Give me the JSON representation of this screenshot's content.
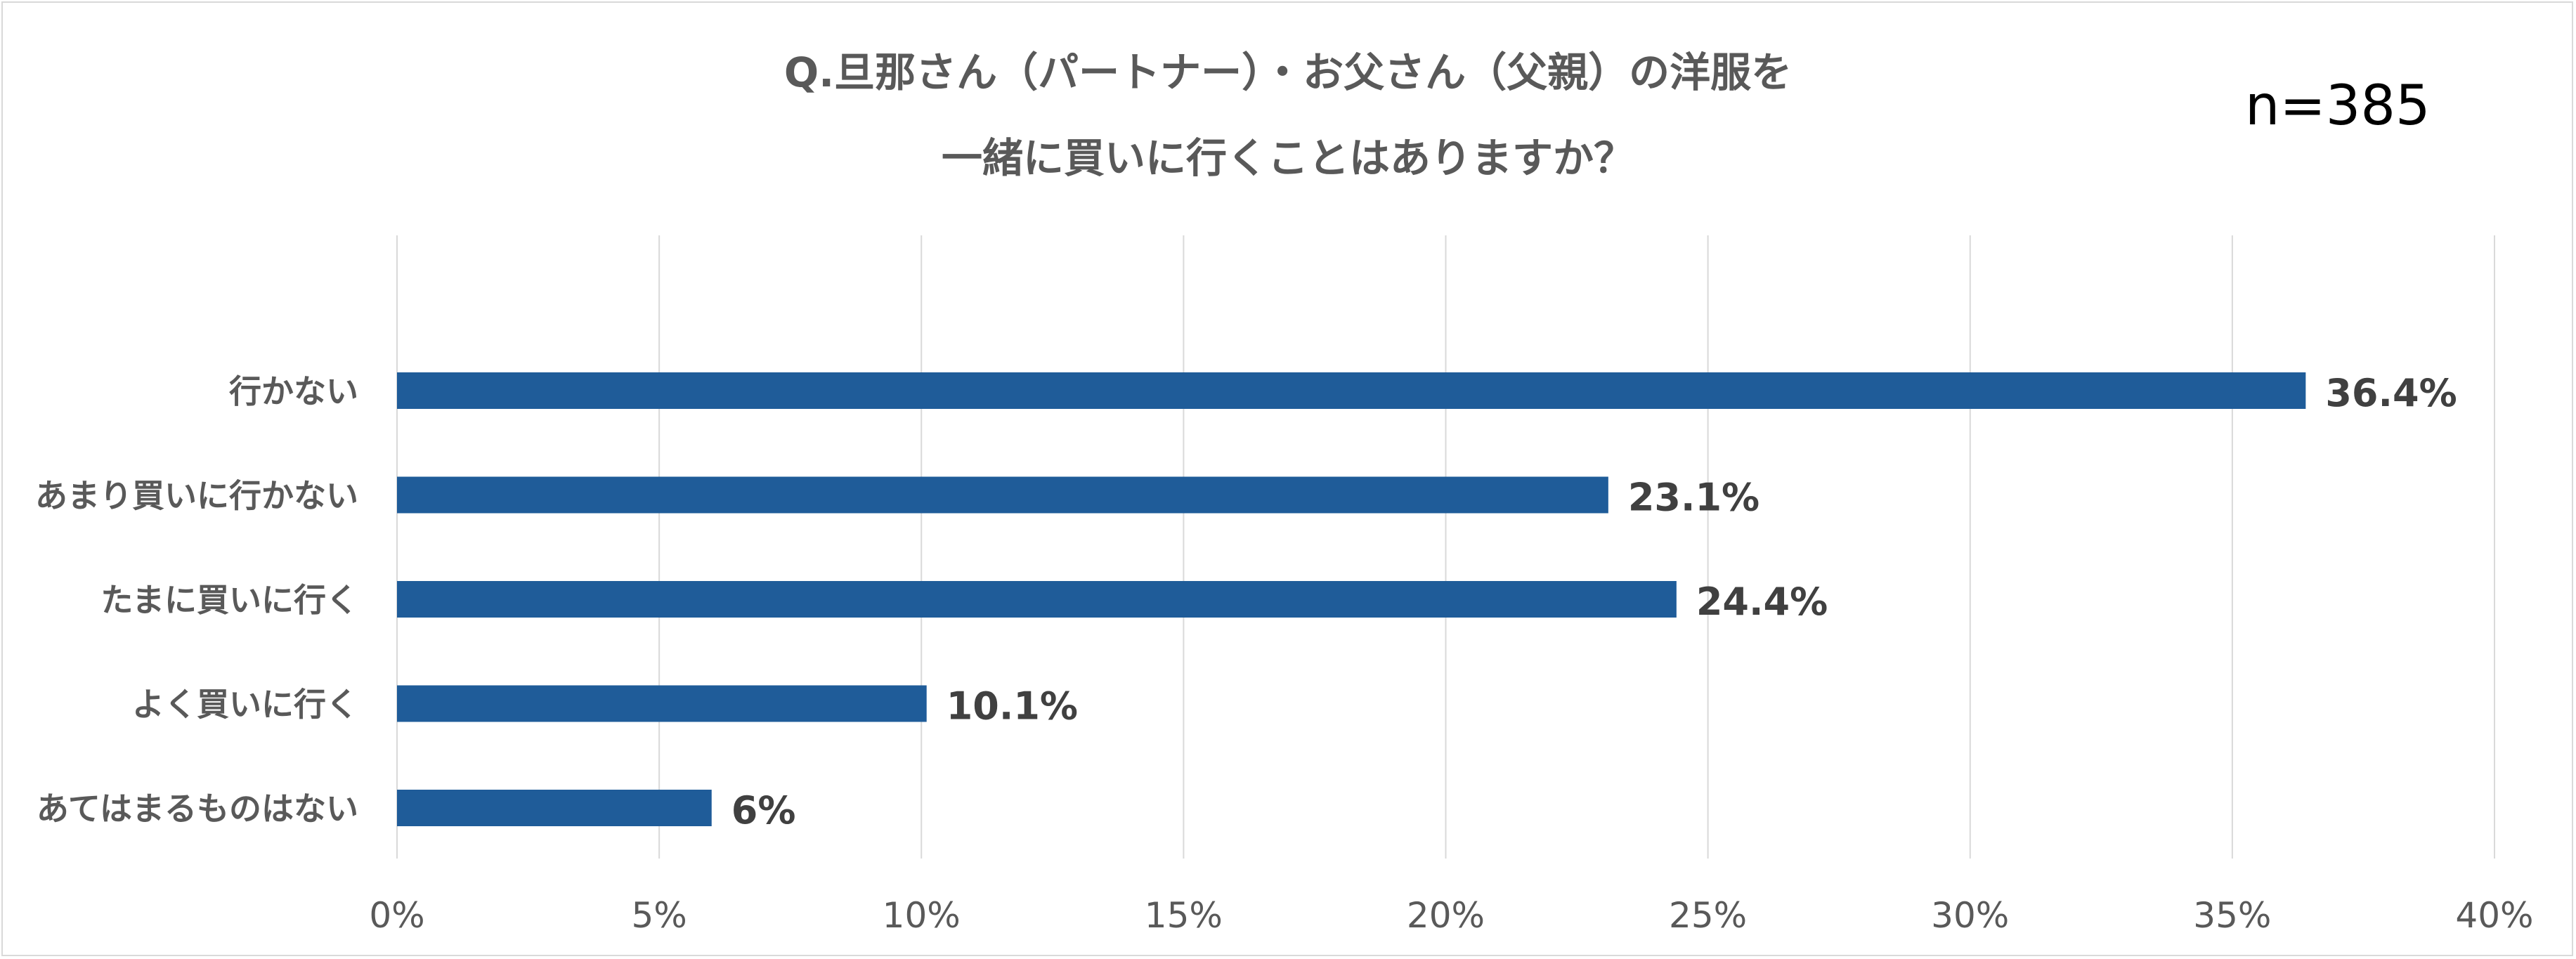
{
  "chart_data": {
    "type": "bar",
    "orientation": "horizontal",
    "title_lines": [
      "Q.旦那さん（パートナー）・お父さん（父親）の洋服を",
      "一緒に買いに行くことはありますか？"
    ],
    "annotation": "n=385",
    "categories": [
      "行かない",
      "あまり買いに行かない",
      "たまに買いに行く",
      "よく買いに行く",
      "あてはまるものはない"
    ],
    "values": [
      36.4,
      23.1,
      24.4,
      10.1,
      6
    ],
    "value_labels": [
      "36.4%",
      "23.1%",
      "24.4%",
      "10.1%",
      "6%"
    ],
    "xlim": [
      0,
      40
    ],
    "x_ticks": [
      0,
      5,
      10,
      15,
      20,
      25,
      30,
      35,
      40
    ],
    "x_tick_labels": [
      "0%",
      "5%",
      "10%",
      "15%",
      "20%",
      "25%",
      "30%",
      "35%",
      "40%"
    ],
    "grid": "vertical",
    "legend": "none",
    "bar_color": "#1F5C99"
  }
}
